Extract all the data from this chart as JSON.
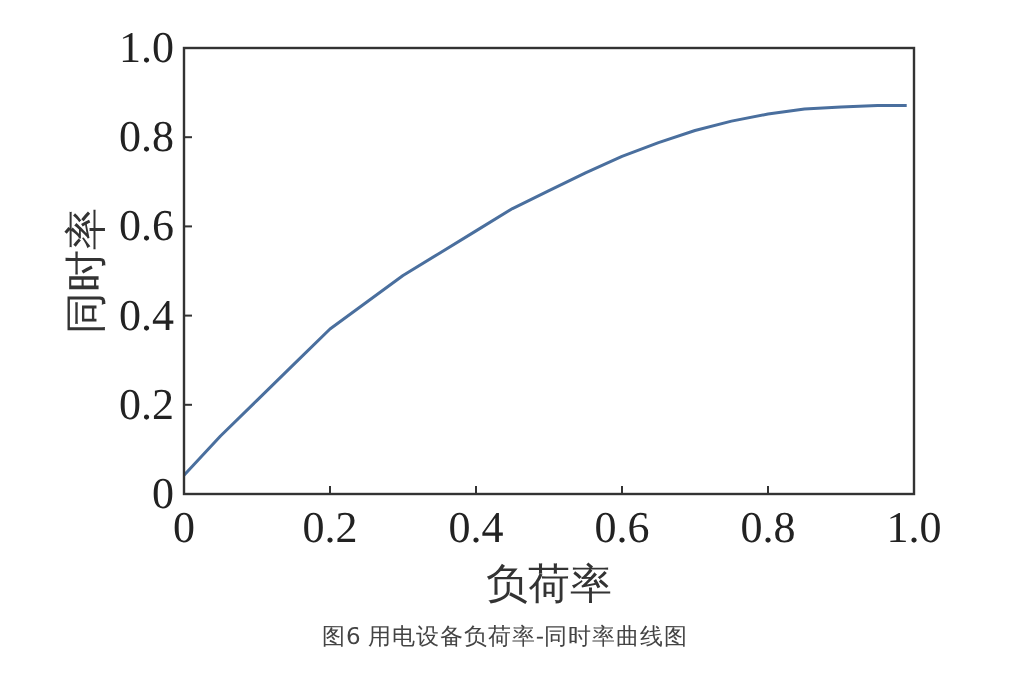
{
  "chart_data": {
    "type": "line",
    "xlabel": "负荷率",
    "ylabel": "同时率",
    "annotations": [
      "图6  用电设备负荷率-同时率曲线图"
    ],
    "x": [
      0,
      0.05,
      0.1,
      0.15,
      0.2,
      0.25,
      0.3,
      0.35,
      0.4,
      0.45,
      0.5,
      0.55,
      0.6,
      0.65,
      0.7,
      0.75,
      0.8,
      0.85,
      0.9,
      0.95,
      0.99
    ],
    "series": [
      {
        "color": "#4a6f9e",
        "values": [
          0.042,
          0.13,
          0.21,
          0.29,
          0.37,
          0.43,
          0.49,
          0.54,
          0.59,
          0.64,
          0.68,
          0.72,
          0.757,
          0.788,
          0.815,
          0.836,
          0.852,
          0.863,
          0.868,
          0.871,
          0.871
        ]
      }
    ],
    "xlim": [
      0,
      1
    ],
    "ylim": [
      0,
      1
    ],
    "xticks": [
      0,
      0.2,
      0.4,
      0.6,
      0.8,
      {
        "value": 1,
        "label": "1.0"
      }
    ],
    "yticks": [
      0,
      0.2,
      0.4,
      0.6,
      0.8,
      {
        "value": 1,
        "label": "1.0"
      }
    ],
    "grid": false,
    "marker": "none",
    "line_style": "solid"
  }
}
